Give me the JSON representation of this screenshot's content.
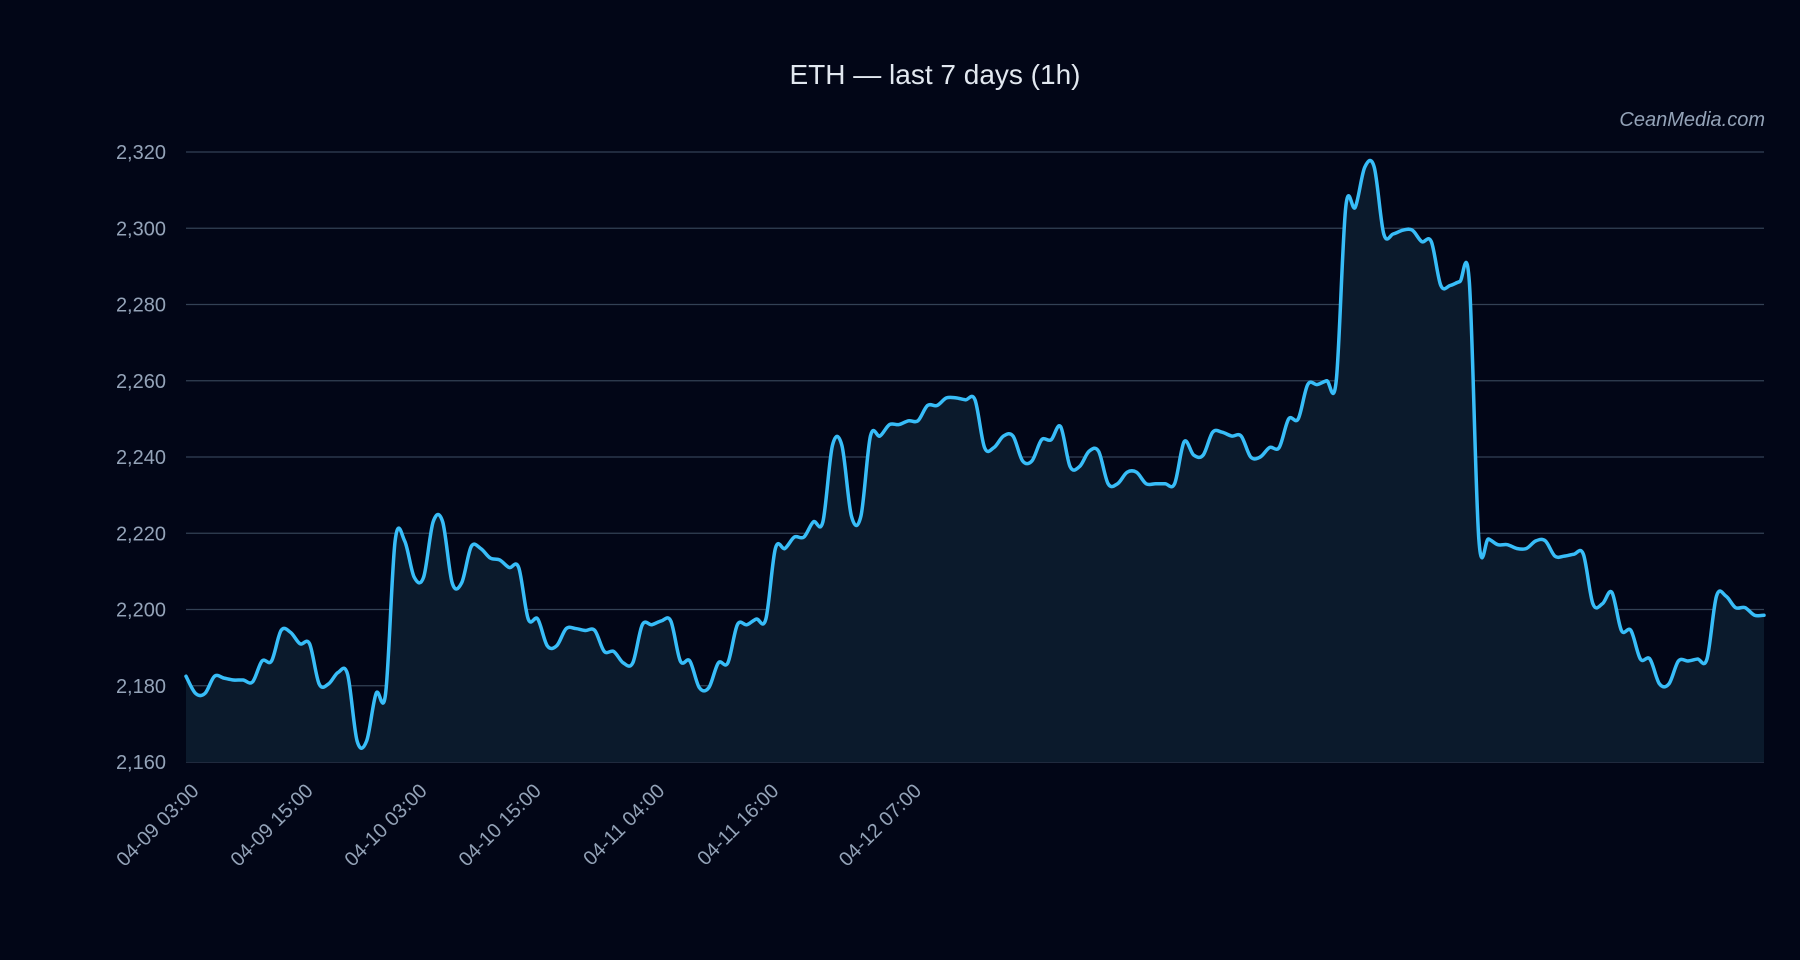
{
  "chart_data": {
    "type": "area",
    "title": "ETH — last 7 days (1h)",
    "watermark": "CeanMedia.com",
    "xlabel": "",
    "ylabel": "",
    "ylim": [
      2160,
      2320
    ],
    "yticks": [
      2160,
      2180,
      2200,
      2220,
      2240,
      2260,
      2280,
      2300,
      2320
    ],
    "ytick_labels": [
      "2,160",
      "2,180",
      "2,200",
      "2,220",
      "2,240",
      "2,260",
      "2,280",
      "2,300",
      "2,320"
    ],
    "xticks": [
      "04-09 03:00",
      "04-09 15:00",
      "04-10 03:00",
      "04-10 15:00",
      "04-11 04:00",
      "04-11 16:00",
      "04-12 07:00"
    ],
    "x_start": "04-09 03:00",
    "interval": "1h",
    "grid": true,
    "legend": false,
    "colors": {
      "background": "#020617",
      "line": "#38bdf8",
      "fill": "#0b1a2c",
      "grid": "#334155",
      "text": "#94a3b8",
      "title": "#e2e8f0"
    },
    "series": [
      {
        "values": [
          2182.5,
          2178.0,
          2178.0,
          2182.5,
          2182.0,
          2181.5,
          2181.5,
          2181.0,
          2186.5,
          2186.5,
          2194.5,
          2194.0,
          2191.0,
          2191.0,
          2180.5,
          2180.5,
          2183.5,
          2183.0,
          2165.5,
          2165.5,
          2178.0,
          2178.0,
          2218.0,
          2218.0,
          2208.5,
          2208.5,
          2223.0,
          2223.0,
          2207.0,
          2207.0,
          2216.5,
          2216.0,
          2213.5,
          2213.0,
          2211.0,
          2211.0,
          2197.5,
          2197.5,
          2190.5,
          2190.5,
          2195.0,
          2195.0,
          2194.5,
          2194.5,
          2189.0,
          2189.0,
          2186.0,
          2186.0,
          2196.0,
          2196.0,
          2197.0,
          2197.0,
          2186.5,
          2186.5,
          2179.5,
          2179.5,
          2186.0,
          2186.0,
          2196.0,
          2196.0,
          2197.5,
          2197.5,
          2216.0,
          2216.0,
          2219.0,
          2219.0,
          2223.0,
          2223.0,
          2243.0,
          2243.0,
          2224.5,
          2224.5,
          2245.5,
          2245.5,
          2248.5,
          2248.5,
          2249.5,
          2249.5,
          2253.5,
          2253.5,
          2255.5,
          2255.5,
          2255.0,
          2255.0,
          2242.5,
          2242.5,
          2245.5,
          2245.5,
          2239.0,
          2239.0,
          2244.5,
          2244.5,
          2248.0,
          2237.5,
          2237.5,
          2241.5,
          2241.5,
          2233.0,
          2233.0,
          2236.0,
          2236.0,
          2233.0,
          2233.0,
          2233.0,
          2233.0,
          2244.0,
          2240.5,
          2240.5,
          2246.5,
          2246.5,
          2245.5,
          2245.5,
          2240.0,
          2240.0,
          2242.5,
          2242.5,
          2250.0,
          2250.0,
          2259.0,
          2259.0,
          2260.0,
          2260.0,
          2305.5,
          2305.5,
          2316.0,
          2316.0,
          2298.5,
          2298.5,
          2299.5,
          2299.5,
          2296.5,
          2296.5,
          2285.0,
          2285.0,
          2286.0,
          2286.0,
          2218.5,
          2218.5,
          2217.0,
          2217.0,
          2216.0,
          2216.0,
          2218.0,
          2218.0,
          2214.0,
          2214.0,
          2214.5,
          2214.5,
          2201.5,
          2201.5,
          2204.5,
          2194.5,
          2194.5,
          2187.0,
          2187.0,
          2180.5,
          2180.5,
          2186.5,
          2186.5,
          2187.0,
          2187.0,
          2203.5,
          2203.5,
          2200.5,
          2200.5,
          2198.5,
          2198.5
        ]
      }
    ]
  }
}
